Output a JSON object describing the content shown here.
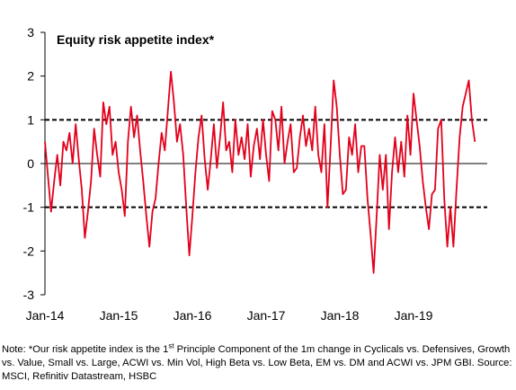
{
  "chart_data": {
    "type": "line",
    "title": "Equity risk appetite index*",
    "xlabel": "",
    "ylabel": "",
    "ylim": [
      -3,
      3
    ],
    "yticks": [
      3,
      2,
      1,
      0,
      -1,
      -2,
      -3
    ],
    "xlim": [
      "2014-01",
      "2020-01"
    ],
    "xticks": [
      {
        "label": "Jan-14",
        "x": "2014-01"
      },
      {
        "label": "Jan-15",
        "x": "2015-01"
      },
      {
        "label": "Jan-16",
        "x": "2016-01"
      },
      {
        "label": "Jan-17",
        "x": "2017-01"
      },
      {
        "label": "Jan-18",
        "x": "2018-01"
      },
      {
        "label": "Jan-19",
        "x": "2019-01"
      }
    ],
    "reference_lines": [
      {
        "y": 1,
        "style": "dashed"
      },
      {
        "y": -1,
        "style": "dashed"
      }
    ],
    "zero_line": true,
    "grid": false,
    "legend": "none",
    "series": [
      {
        "color": "#e3001b",
        "x_start": "2014-01",
        "x_step_months": 0.5,
        "values": [
          0.5,
          -0.3,
          -1.1,
          -0.4,
          0.2,
          -0.5,
          0.5,
          0.3,
          0.7,
          0.0,
          0.9,
          0.1,
          -0.6,
          -1.7,
          -1.1,
          -0.4,
          0.8,
          0.2,
          -0.3,
          1.4,
          0.9,
          1.3,
          0.2,
          0.5,
          -0.2,
          -0.6,
          -1.2,
          0.5,
          1.3,
          0.6,
          1.1,
          0.3,
          -0.4,
          -1.2,
          -1.9,
          -1.1,
          -0.8,
          0.0,
          0.7,
          0.3,
          1.2,
          2.1,
          1.4,
          0.5,
          0.9,
          0.2,
          -1.0,
          -2.1,
          -1.2,
          -0.2,
          0.6,
          1.1,
          0.1,
          -0.6,
          0.1,
          0.9,
          -0.1,
          0.6,
          1.4,
          0.3,
          0.5,
          -0.2,
          1.0,
          0.2,
          0.6,
          0.1,
          0.9,
          -0.3,
          0.4,
          0.8,
          0.1,
          1.0,
          0.2,
          -0.4,
          1.2,
          1.0,
          0.3,
          1.3,
          0.0,
          0.5,
          0.9,
          -0.2,
          -0.1,
          0.6,
          1.1,
          0.4,
          0.8,
          0.3,
          1.3,
          0.2,
          -0.2,
          0.9,
          -1.0,
          0.4,
          1.9,
          1.3,
          0.2,
          -0.7,
          -0.6,
          0.6,
          0.2,
          0.9,
          -0.2,
          0.4,
          0.4,
          -0.8,
          -1.6,
          -2.5,
          -1.2,
          0.2,
          -0.6,
          0.2,
          -1.5,
          -0.2,
          0.6,
          -0.2,
          0.5,
          -0.3,
          1.1,
          0.2,
          1.6,
          1.0,
          0.4,
          -0.4,
          -1.0,
          -1.5,
          -0.7,
          -0.6,
          0.8,
          1.0,
          -0.8,
          -1.9,
          -1.0,
          -1.9,
          -0.6,
          0.6,
          1.3,
          1.6,
          1.9,
          1.0,
          0.5
        ]
      }
    ]
  },
  "note": {
    "prefix": "Note: *Our risk appetite index is the 1",
    "superscript": "st",
    "body": " Principle Component of the 1m change in Cyclicals vs. Defensives, Growth vs. Value, Small vs. Large, ACWI vs. Min Vol, High Beta vs. Low Beta, EM vs. DM and ACWI vs. JPM GBI. Source: MSCI, Refinitiv Datastream, HSBC"
  }
}
